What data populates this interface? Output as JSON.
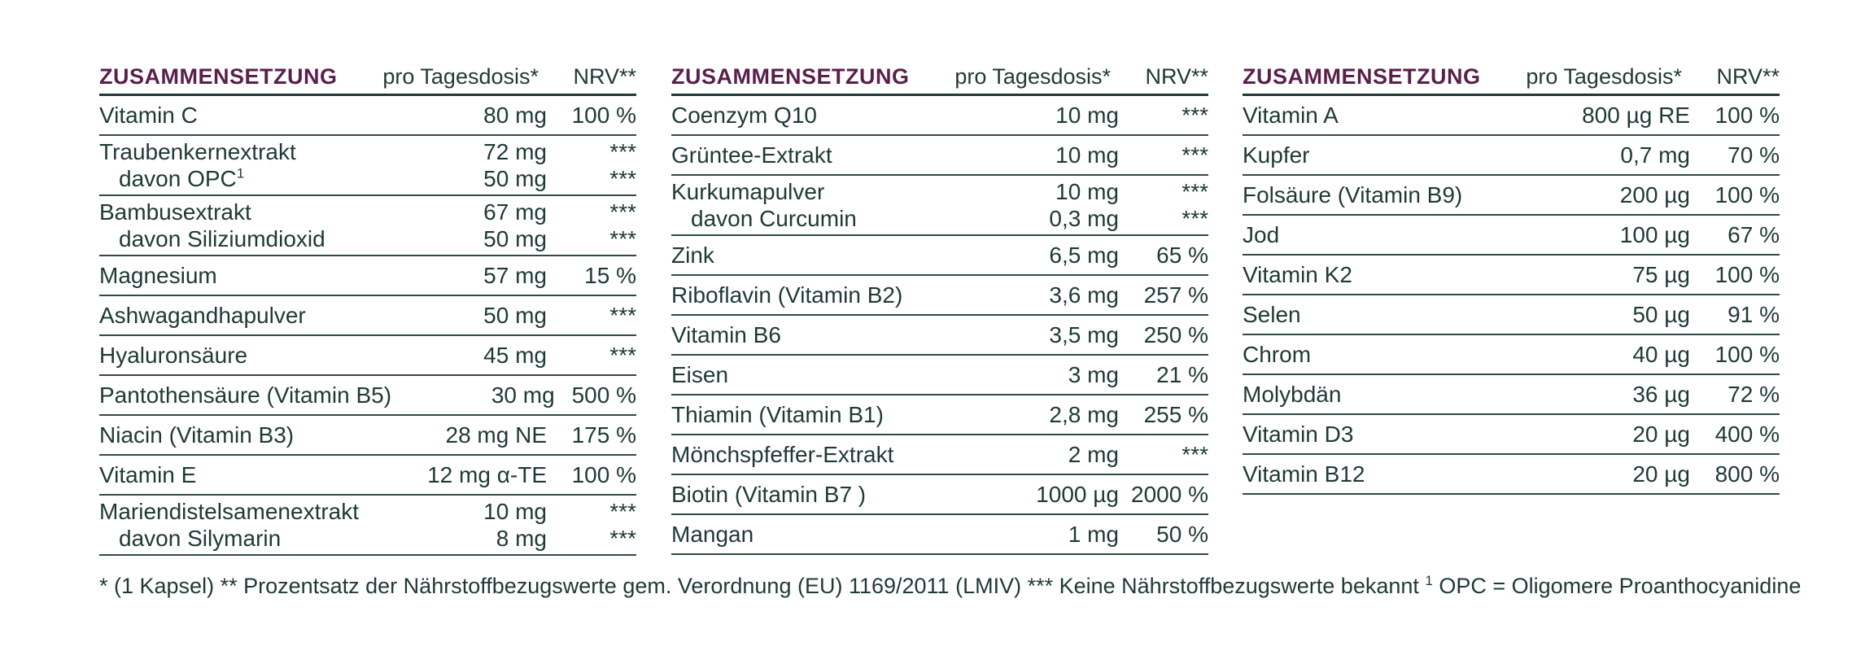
{
  "header": {
    "title": "ZUSAMMENSETZUNG",
    "dose": "pro Tagesdosis*",
    "nrv": "NRV**"
  },
  "tables": [
    {
      "rows": [
        {
          "name": "Vitamin C",
          "dose": "80 mg",
          "nrv": "100 %"
        },
        {
          "name": "Traubenkernextrakt",
          "dose": "72 mg",
          "nrv": "***",
          "sub": {
            "name": "davon OPC",
            "sup": "1",
            "dose": "50 mg",
            "nrv": "***"
          }
        },
        {
          "name": "Bambusextrakt",
          "dose": "67 mg",
          "nrv": "***",
          "sub": {
            "name": "davon Siliziumdioxid",
            "sup": "",
            "dose": "50 mg",
            "nrv": "***"
          }
        },
        {
          "name": "Magnesium",
          "dose": "57 mg",
          "nrv": "15 %"
        },
        {
          "name": "Ashwagandhapulver",
          "dose": "50 mg",
          "nrv": "***"
        },
        {
          "name": "Hyaluronsäure",
          "dose": "45 mg",
          "nrv": "***"
        },
        {
          "name": "Pantothensäure (Vitamin B5)",
          "dose": "30 mg",
          "nrv": "500 %"
        },
        {
          "name": "Niacin (Vitamin B3)",
          "dose": "28 mg NE",
          "nrv": "175 %"
        },
        {
          "name": "Vitamin E",
          "dose": "12 mg α-TE",
          "nrv": "100 %"
        },
        {
          "name": "Mariendistelsamenextrakt",
          "dose": "10 mg",
          "nrv": "***",
          "sub": {
            "name": "davon Silymarin",
            "sup": "",
            "dose": "8 mg",
            "nrv": "***"
          }
        }
      ]
    },
    {
      "rows": [
        {
          "name": "Coenzym Q10",
          "dose": "10 mg",
          "nrv": "***"
        },
        {
          "name": "Grüntee-Extrakt",
          "dose": "10 mg",
          "nrv": "***"
        },
        {
          "name": "Kurkumapulver",
          "dose": "10 mg",
          "nrv": "***",
          "sub": {
            "name": "davon Curcumin",
            "sup": "",
            "dose": "0,3 mg",
            "nrv": "***"
          }
        },
        {
          "name": "Zink",
          "dose": "6,5 mg",
          "nrv": "65 %"
        },
        {
          "name": "Riboflavin (Vitamin B2)",
          "dose": "3,6 mg",
          "nrv": "257 %"
        },
        {
          "name": "Vitamin B6",
          "dose": "3,5 mg",
          "nrv": "250 %"
        },
        {
          "name": "Eisen",
          "dose": "3 mg",
          "nrv": "21 %"
        },
        {
          "name": "Thiamin (Vitamin B1)",
          "dose": "2,8 mg",
          "nrv": "255 %"
        },
        {
          "name": "Mönchspfeffer-Extrakt",
          "dose": "2 mg",
          "nrv": "***"
        },
        {
          "name": "Biotin (Vitamin B7 )",
          "dose": "1000 µg",
          "nrv": "2000 %"
        },
        {
          "name": "Mangan",
          "dose": "1 mg",
          "nrv": "50 %"
        }
      ]
    },
    {
      "rows": [
        {
          "name": "Vitamin A",
          "dose": "800 µg RE",
          "nrv": "100 %"
        },
        {
          "name": "Kupfer",
          "dose": "0,7 mg",
          "nrv": "70 %"
        },
        {
          "name": "Folsäure (Vitamin B9)",
          "dose": "200 µg",
          "nrv": "100 %"
        },
        {
          "name": "Jod",
          "dose": "100 µg",
          "nrv": "67 %"
        },
        {
          "name": "Vitamin K2",
          "dose": "75 µg",
          "nrv": "100 %"
        },
        {
          "name": "Selen",
          "dose": "50 µg",
          "nrv": "91 %"
        },
        {
          "name": "Chrom",
          "dose": "40 µg",
          "nrv": "100 %"
        },
        {
          "name": "Molybdän",
          "dose": "36 µg",
          "nrv": "72 %"
        },
        {
          "name": "Vitamin D3",
          "dose": "20 µg",
          "nrv": "400 %"
        },
        {
          "name": "Vitamin B12",
          "dose": "20 µg",
          "nrv": "800 %"
        }
      ]
    }
  ],
  "footnote": {
    "part1": "* (1 Kapsel) ** Prozentsatz der Nährstoffbezugswerte gem. Verordnung (EU) 1169/2011 (LMIV) *** Keine Nährstoffbezugswerte bekannt ",
    "sup": "1",
    "part2": " OPC = Oligomere Proanthocyanidine"
  }
}
